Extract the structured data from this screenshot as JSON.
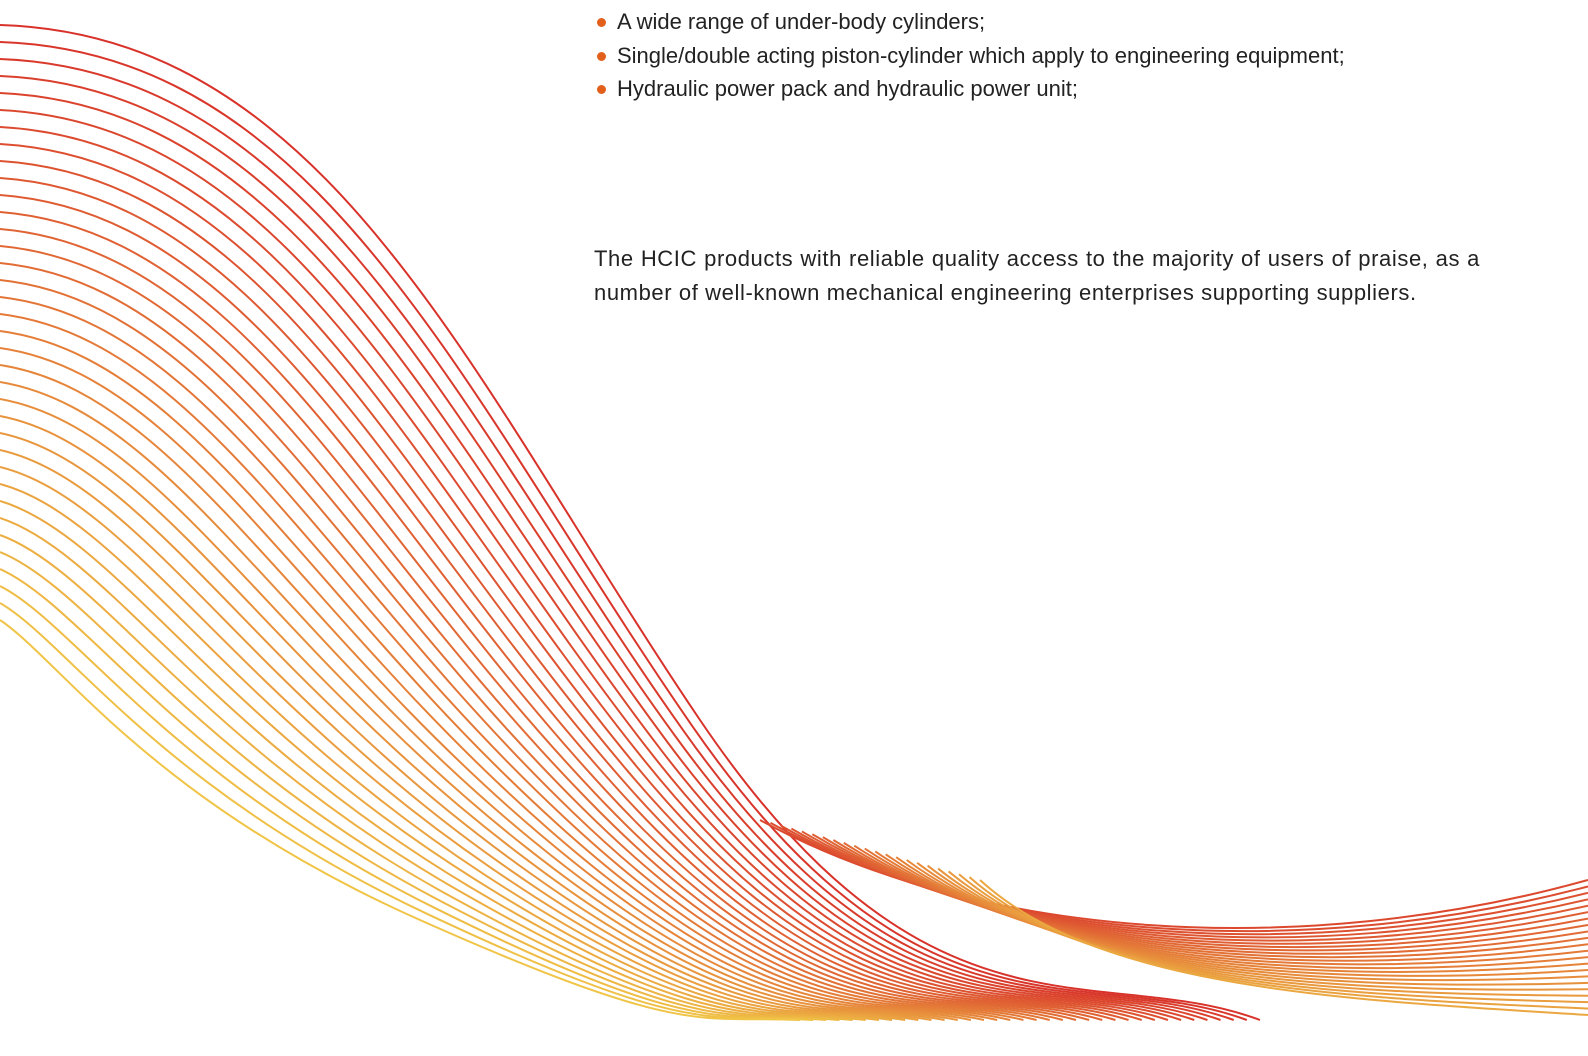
{
  "bullets": [
    "A wide range of under-body cylinders;",
    "Single/double acting piston-cylinder which apply to engineering equipment;",
    "Hydraulic power pack and hydraulic power unit;"
  ],
  "paragraph": "The HCIC products with reliable quality access to the majority of users of praise, as a number of well-known mechanical engineering enterprises supporting suppliers."
}
